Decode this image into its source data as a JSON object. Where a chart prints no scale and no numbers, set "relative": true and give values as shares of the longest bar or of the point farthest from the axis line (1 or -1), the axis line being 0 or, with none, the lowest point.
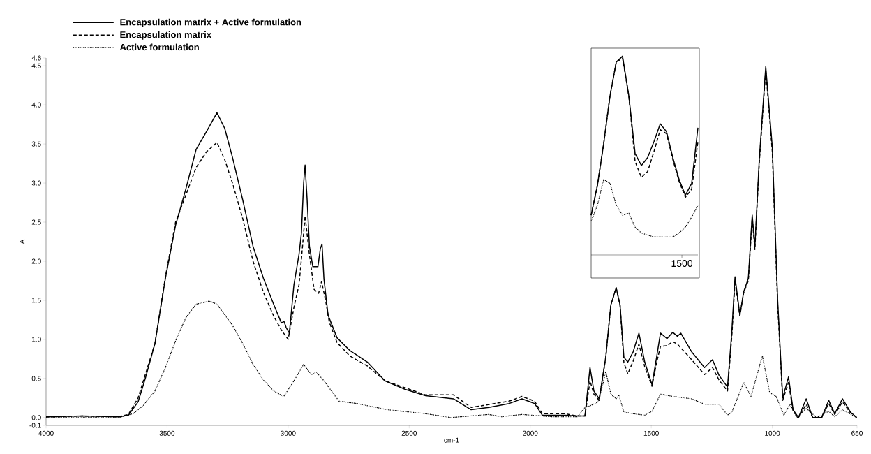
{
  "chart_data": [
    {
      "type": "line",
      "xlabel": "cm-1",
      "ylabel": "A",
      "xlim": [
        4000,
        650
      ],
      "ylim": [
        -0.1,
        4.6
      ],
      "xticks": [
        4000,
        3500,
        3000,
        2500,
        2000,
        1500,
        1000,
        650
      ],
      "yticks": [
        {
          "value": -0.1,
          "label": "-0.1"
        },
        {
          "value": 0,
          "label": "-0.0"
        },
        {
          "value": 0.5,
          "label": "0.5"
        },
        {
          "value": 1,
          "label": "1.0"
        },
        {
          "value": 1.5,
          "label": "1.5"
        },
        {
          "value": 2,
          "label": "2.0"
        },
        {
          "value": 2.5,
          "label": "2.5"
        },
        {
          "value": 3,
          "label": "3.0"
        },
        {
          "value": 3.5,
          "label": "3.5"
        },
        {
          "value": 4,
          "label": "4.0"
        },
        {
          "value": 4.5,
          "label": "4.5"
        },
        {
          "value": 4.6,
          "label": "4.6"
        }
      ],
      "legend": "top left",
      "series": [
        {
          "name": "Encapsulation matrix + Active formulation",
          "color": "#000000",
          "line_style": "solid",
          "x": [
            4000,
            3850,
            3700,
            3660,
            3620,
            3590,
            3550,
            3507,
            3465,
            3422,
            3380,
            3337,
            3294,
            3262,
            3230,
            3188,
            3145,
            3102,
            3060,
            3028,
            3017,
            3008,
            2995,
            2976,
            2955,
            2945,
            2936,
            2930,
            2922,
            2912,
            2898,
            2877,
            2867,
            2860,
            2852,
            2835,
            2798,
            2746,
            2673,
            2600,
            2516,
            2432,
            2317,
            2244,
            2171,
            2087,
            2034,
            1982,
            1950,
            1857,
            1806,
            1774,
            1753,
            1737,
            1715,
            1688,
            1667,
            1645,
            1629,
            1613,
            1597,
            1575,
            1551,
            1527,
            1497,
            1478,
            1462,
            1435,
            1411,
            1392,
            1378,
            1333,
            1280,
            1247,
            1220,
            1185,
            1167,
            1154,
            1134,
            1118,
            1099,
            1083,
            1072,
            1054,
            1027,
            1000,
            978,
            957,
            933,
            914,
            892,
            860,
            833,
            796,
            767,
            742,
            710,
            677,
            651
          ],
          "values": [
            0.01,
            0.02,
            0.01,
            0.03,
            0.2,
            0.5,
            0.95,
            1.78,
            2.46,
            2.93,
            3.43,
            3.66,
            3.9,
            3.7,
            3.33,
            2.79,
            2.19,
            1.78,
            1.45,
            1.21,
            1.23,
            1.15,
            1.08,
            1.7,
            2.09,
            2.36,
            3.0,
            3.23,
            2.81,
            2.19,
            1.93,
            1.93,
            2.16,
            2.22,
            1.77,
            1.31,
            1.02,
            0.86,
            0.71,
            0.47,
            0.36,
            0.28,
            0.24,
            0.1,
            0.13,
            0.18,
            0.24,
            0.18,
            0.03,
            0.03,
            0.02,
            0.02,
            0.64,
            0.34,
            0.24,
            0.77,
            1.44,
            1.66,
            1.44,
            0.77,
            0.71,
            0.84,
            1.08,
            0.71,
            0.42,
            0.77,
            1.08,
            1.01,
            1.09,
            1.04,
            1.08,
            0.84,
            0.64,
            0.74,
            0.54,
            0.39,
            1.11,
            1.8,
            1.31,
            1.61,
            1.78,
            2.59,
            2.18,
            3.29,
            4.49,
            3.46,
            1.51,
            0.25,
            0.52,
            0.1,
            0,
            0.24,
            0,
            0,
            0.22,
            0.05,
            0.24,
            0.07,
            0
          ]
        },
        {
          "name": "Encapsulation matrix",
          "color": "#000000",
          "line_style": "dashed",
          "x": [
            4000,
            3850,
            3700,
            3660,
            3620,
            3590,
            3550,
            3507,
            3465,
            3422,
            3380,
            3337,
            3294,
            3262,
            3230,
            3188,
            3145,
            3102,
            3060,
            3028,
            3000,
            2976,
            2955,
            2945,
            2930,
            2914,
            2893,
            2874,
            2862,
            2846,
            2830,
            2798,
            2746,
            2673,
            2600,
            2432,
            2317,
            2244,
            2087,
            2034,
            1982,
            1950,
            1857,
            1806,
            1774,
            1753,
            1737,
            1715,
            1688,
            1667,
            1645,
            1629,
            1613,
            1597,
            1575,
            1551,
            1527,
            1497,
            1478,
            1462,
            1435,
            1411,
            1392,
            1333,
            1280,
            1247,
            1220,
            1185,
            1167,
            1154,
            1134,
            1118,
            1099,
            1083,
            1072,
            1054,
            1027,
            1000,
            978,
            957,
            933,
            914,
            892,
            860,
            833,
            796,
            767,
            742,
            710,
            677,
            651
          ],
          "values": [
            0.01,
            0.02,
            0.01,
            0.04,
            0.25,
            0.55,
            0.95,
            1.8,
            2.5,
            2.85,
            3.2,
            3.4,
            3.52,
            3.3,
            3.0,
            2.55,
            2.0,
            1.6,
            1.3,
            1.12,
            1.0,
            1.41,
            1.7,
            2.03,
            2.58,
            2.13,
            1.64,
            1.59,
            1.74,
            1.51,
            1.22,
            0.96,
            0.79,
            0.66,
            0.47,
            0.29,
            0.29,
            0.13,
            0.21,
            0.27,
            0.21,
            0.05,
            0.05,
            0.02,
            0.02,
            0.47,
            0.3,
            0.22,
            0.77,
            1.44,
            1.66,
            1.44,
            0.7,
            0.56,
            0.72,
            0.94,
            0.65,
            0.4,
            0.7,
            0.91,
            0.92,
            0.97,
            0.94,
            0.74,
            0.55,
            0.64,
            0.48,
            0.34,
            1.05,
            1.75,
            1.3,
            1.6,
            1.75,
            2.55,
            2.15,
            3.25,
            4.45,
            3.4,
            1.45,
            0.22,
            0.45,
            0.08,
            0,
            0.17,
            0,
            0,
            0.18,
            0.04,
            0.2,
            0.06,
            0
          ]
        },
        {
          "name": "Active formulation",
          "color": "#000000",
          "line_style": "dotted",
          "x": [
            4000,
            3700,
            3640,
            3600,
            3550,
            3507,
            3465,
            3422,
            3380,
            3326,
            3294,
            3230,
            3188,
            3145,
            3102,
            3060,
            3018,
            2976,
            2936,
            2904,
            2883,
            2852,
            2790,
            2716,
            2590,
            2432,
            2328,
            2171,
            2119,
            2034,
            1910,
            1806,
            1774,
            1753,
            1720,
            1699,
            1688,
            1667,
            1645,
            1634,
            1613,
            1575,
            1527,
            1497,
            1462,
            1411,
            1333,
            1280,
            1220,
            1185,
            1167,
            1118,
            1088,
            1041,
            1011,
            984,
            952,
            927,
            898,
            860,
            817,
            767,
            742,
            710,
            651
          ],
          "values": [
            0,
            0,
            0.05,
            0.15,
            0.34,
            0.64,
            0.98,
            1.28,
            1.45,
            1.49,
            1.45,
            1.18,
            0.95,
            0.68,
            0.48,
            0.34,
            0.27,
            0.47,
            0.68,
            0.55,
            0.58,
            0.47,
            0.21,
            0.18,
            0.1,
            0.05,
            0,
            0.04,
            0.01,
            0.04,
            0.01,
            0.01,
            0.13,
            0.15,
            0.2,
            0.44,
            0.59,
            0.3,
            0.24,
            0.29,
            0.07,
            0.05,
            0.03,
            0.08,
            0.3,
            0.27,
            0.24,
            0.17,
            0.17,
            0.03,
            0.07,
            0.45,
            0.27,
            0.79,
            0.32,
            0.27,
            0.03,
            0.17,
            0,
            0.12,
            0,
            0.08,
            0.01,
            0.1,
            0
          ]
        }
      ]
    },
    {
      "type": "line",
      "relative": true,
      "annotations": [
        "1500"
      ],
      "categories": [
        null,
        null,
        null,
        null,
        null,
        null,
        null,
        null,
        null,
        null,
        null,
        null,
        null,
        null,
        null,
        null,
        null,
        null
      ],
      "series": [
        {
          "color": "#000000",
          "line_style": "solid",
          "values": [
            0.2,
            0.35,
            0.56,
            0.8,
            0.97,
            1.0,
            0.8,
            0.51,
            0.45,
            0.49,
            0.57,
            0.66,
            0.62,
            0.49,
            0.38,
            0.3,
            0.36,
            0.64
          ]
        },
        {
          "color": "#000000",
          "line_style": "dashed",
          "values": [
            0.2,
            0.35,
            0.56,
            0.8,
            0.97,
            0.99,
            0.8,
            0.47,
            0.39,
            0.42,
            0.52,
            0.63,
            0.61,
            0.48,
            0.37,
            0.29,
            0.33,
            0.57
          ]
        },
        {
          "color": "#000000",
          "line_style": "dotted",
          "values": [
            0.17,
            0.25,
            0.38,
            0.36,
            0.25,
            0.2,
            0.21,
            0.14,
            0.11,
            0.1,
            0.09,
            0.09,
            0.09,
            0.09,
            0.11,
            0.14,
            0.19,
            0.25
          ]
        }
      ]
    }
  ]
}
